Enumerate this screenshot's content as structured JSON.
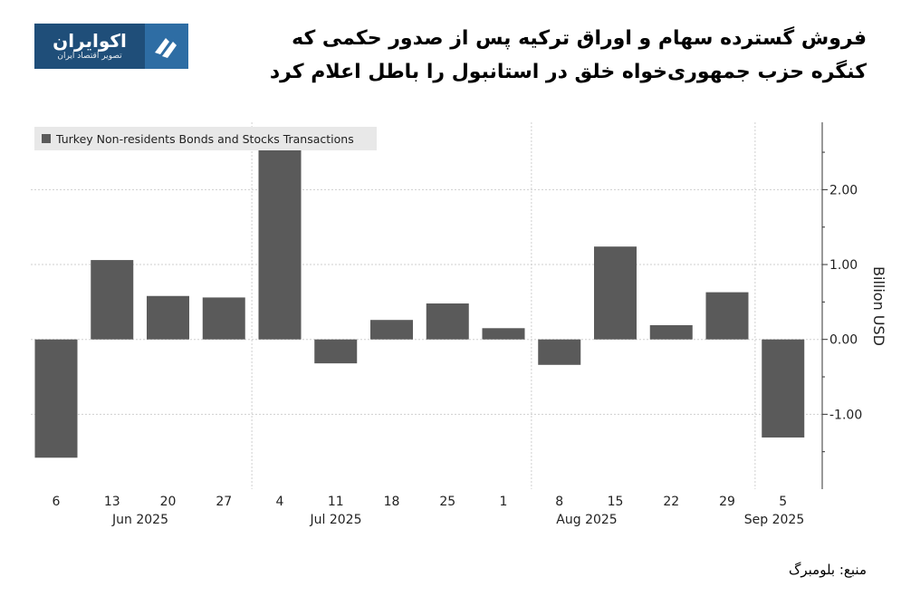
{
  "header": {
    "title": "فروش گسترده سهام و اوراق ترکیه پس از صدور حکمی که کنگره حزب جمهوری‌خواه خلق در استانبول را باطل اعلام کرد",
    "logo_name": "اکوایران",
    "logo_tagline": "تصویر اقتصاد ایران",
    "logo_color": "#1f4e79"
  },
  "source": "منبع: بلومبرگ",
  "chart_data": {
    "type": "bar",
    "series": [
      {
        "name": "Turkey Non-residents Bonds and Stocks Transactions",
        "color": "#5a5a5a",
        "values": [
          -1.58,
          1.06,
          0.58,
          0.56,
          2.6,
          -0.32,
          0.26,
          0.48,
          0.15,
          -0.34,
          1.24,
          0.19,
          0.63,
          -1.31
        ]
      }
    ],
    "categories": [
      "6",
      "13",
      "20",
      "27",
      "4",
      "11",
      "18",
      "25",
      "1",
      "8",
      "15",
      "22",
      "29",
      "5"
    ],
    "month_labels": [
      {
        "label": "Jun 2025",
        "after_index": 1.5
      },
      {
        "label": "Jul 2025",
        "after_index": 4.5
      },
      {
        "label": "Aug 2025",
        "after_index": 9.5
      },
      {
        "label": "Sep 2025",
        "after_index": 13.5
      }
    ],
    "ylabel": "Billion USD",
    "ylim": [
      -2.0,
      2.9
    ],
    "yticks": [
      2.0,
      1.0,
      0.0,
      -1.0
    ],
    "ytick_labels": [
      "2.00",
      "1.00",
      "0.00",
      "-1.00"
    ],
    "grid": true,
    "legend_position": "top-left"
  }
}
